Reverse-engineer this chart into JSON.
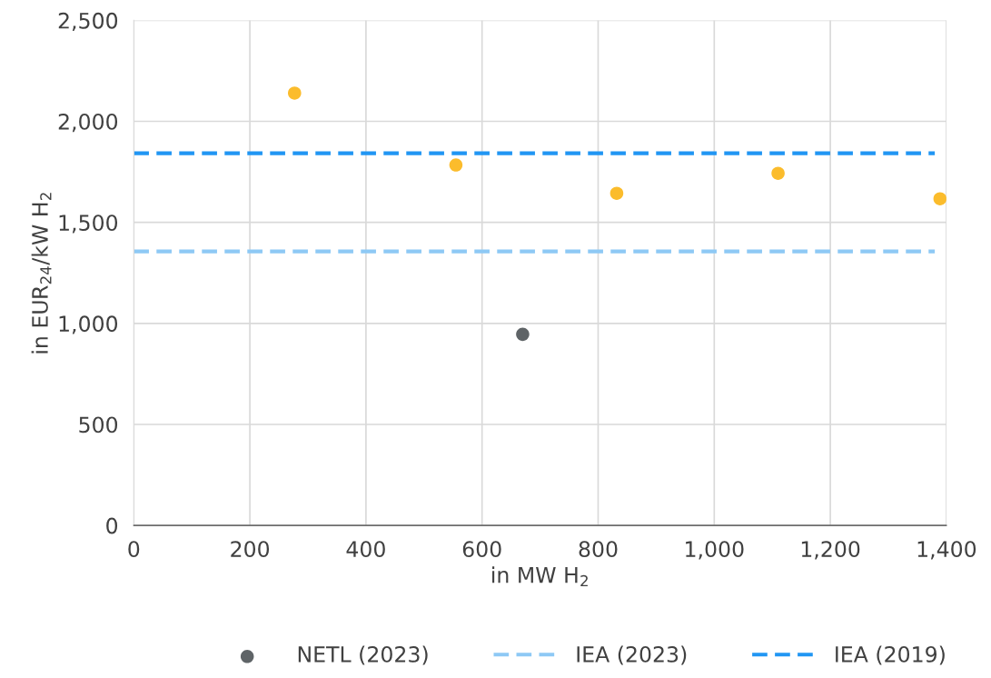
{
  "chart_data": {
    "type": "scatter",
    "xlabel": "in MW H$_{2}$",
    "ylabel": "in EUR$_{24}$/kW H$_{2}$",
    "xlim": [
      0,
      1400
    ],
    "xticks": [
      0,
      {
        "value": 200,
        "label": "200"
      },
      {
        "value": 400,
        "label": "400"
      },
      {
        "value": 600,
        "label": "600"
      },
      {
        "value": 800,
        "label": "800"
      },
      {
        "value": 1000,
        "label": "1,000"
      },
      {
        "value": 1200,
        "label": "1,200"
      },
      {
        "value": 1400,
        "label": "1,400"
      }
    ],
    "ylim": [
      0,
      2500
    ],
    "yticks": [
      0,
      {
        "value": 500,
        "label": "500"
      },
      {
        "value": 1000,
        "label": "1,000"
      },
      {
        "value": 1500,
        "label": "1,500"
      },
      {
        "value": 2000,
        "label": "2,000"
      },
      {
        "value": 2500,
        "label": "2,500"
      }
    ],
    "grid": true,
    "legend": "bottom",
    "series": [
      {
        "color": "#fbbc2c",
        "marker": "circle",
        "x": [
          277,
          555,
          832,
          1110,
          1389
        ],
        "values": [
          2140,
          1784,
          1644,
          1743,
          1617
        ]
      },
      {
        "name": "NETL (2023)",
        "color": "#5f6467",
        "marker": "circle",
        "x": [
          670
        ],
        "values": [
          946
        ]
      },
      {
        "name": "IEA (2023)",
        "type": "line",
        "line_style": "dashed",
        "color": "#8ec9f5",
        "x": [
          0,
          1380
        ],
        "values": [
          1356,
          1356
        ]
      },
      {
        "name": "IEA (2019)",
        "type": "line",
        "line_style": "dashed",
        "color": "#2196f3",
        "x": [
          0,
          1380
        ],
        "values": [
          1842,
          1842
        ]
      }
    ]
  }
}
